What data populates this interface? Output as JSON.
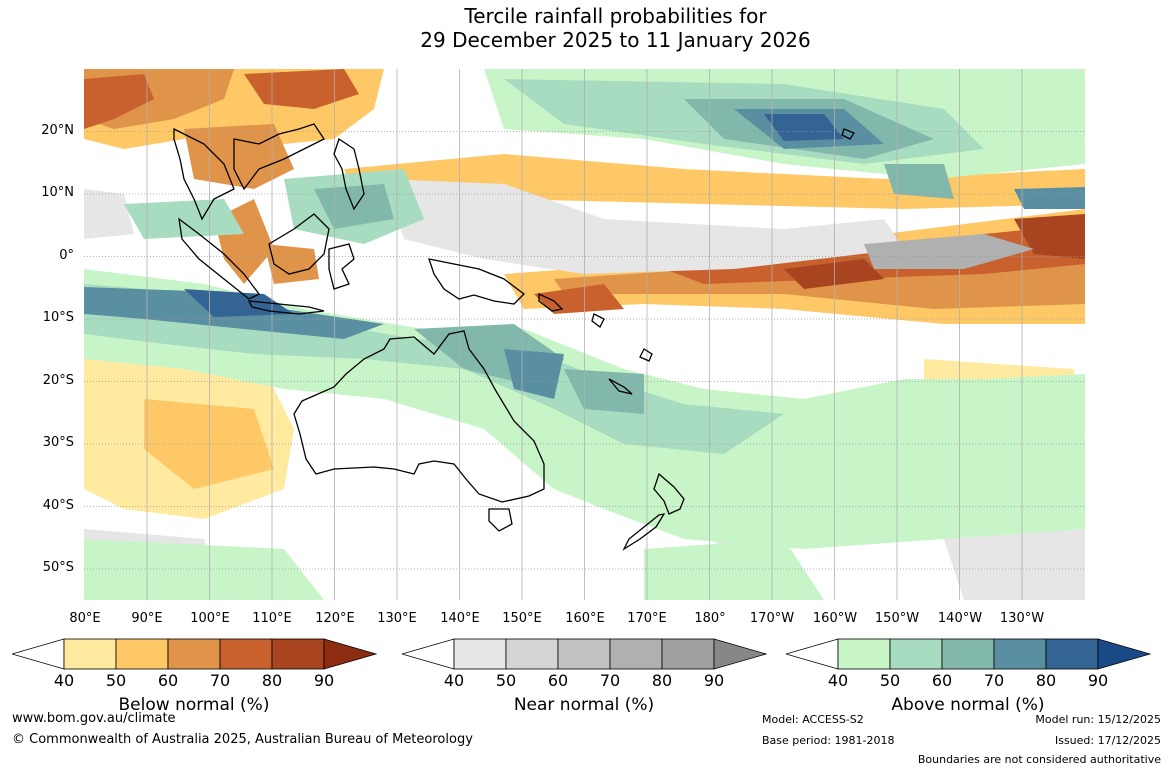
{
  "title": {
    "line1": "Tercile rainfall probabilities for",
    "line2": "29 December 2025 to 11 January 2026"
  },
  "map": {
    "latitude_labels": [
      "20°N",
      "10°N",
      "0°",
      "10°S",
      "20°S",
      "30°S",
      "40°S",
      "50°S"
    ],
    "longitude_labels": [
      "80°E",
      "90°E",
      "100°E",
      "110°E",
      "120°E",
      "130°E",
      "140°E",
      "150°E",
      "160°E",
      "170°E",
      "180°",
      "170°W",
      "160°W",
      "150°W",
      "140°W",
      "130°W"
    ]
  },
  "legends": [
    {
      "title": "Below normal (%)",
      "ticks": [
        "40",
        "50",
        "60",
        "70",
        "80",
        "90"
      ],
      "colors": [
        "#ffffff",
        "#ffeaa0",
        "#fdc865",
        "#e0944a",
        "#c9612e",
        "#a8441f",
        "#8c2d12"
      ]
    },
    {
      "title": "Near normal (%)",
      "ticks": [
        "40",
        "50",
        "60",
        "70",
        "80",
        "90"
      ],
      "colors": [
        "#ffffff",
        "#e6e6e6",
        "#d4d4d4",
        "#c2c2c2",
        "#b0b0b0",
        "#a0a0a0",
        "#878787"
      ]
    },
    {
      "title": "Above normal (%)",
      "ticks": [
        "40",
        "50",
        "60",
        "70",
        "80",
        "90"
      ],
      "colors": [
        "#ffffff",
        "#c8f5c8",
        "#a8dcc0",
        "#82b8ac",
        "#5a8fa2",
        "#336494",
        "#1a4a85"
      ]
    }
  ],
  "footer": {
    "website": "www.bom.gov.au/climate",
    "copyright": "© Commonwealth of Australia 2025, Australian Bureau of Meteorology",
    "model": "Model: ACCESS-S2",
    "base_period": "Base period: 1981-2018",
    "model_run": "Model run: 15/12/2025",
    "issued": "Issued: 17/12/2025",
    "disclaimer": "Boundaries are not considered authoritative"
  }
}
